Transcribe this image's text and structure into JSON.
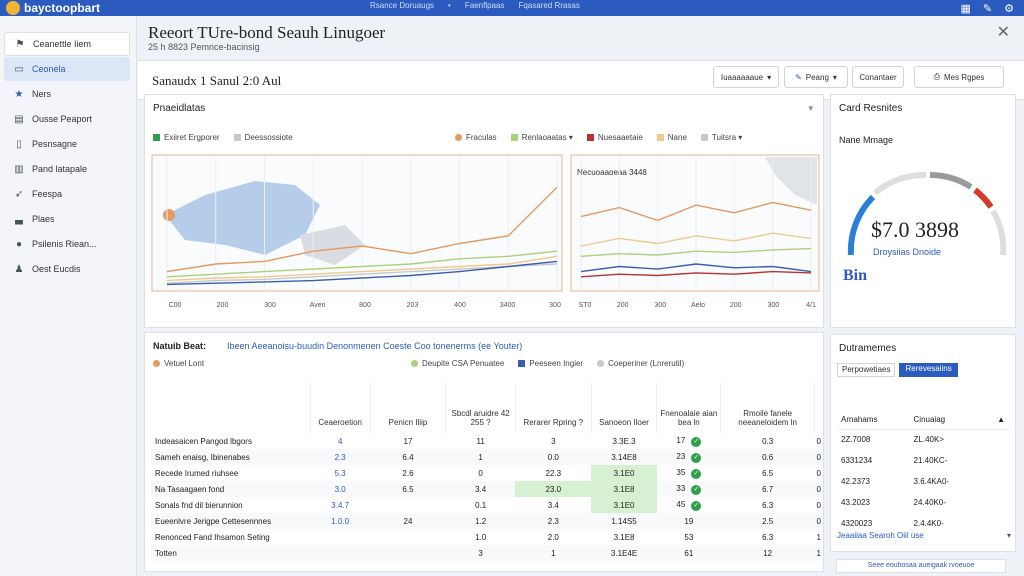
{
  "topbar": {
    "brand": "bayctoopbart",
    "nav": [
      "Rsance Doruaugs",
      "Faenflpaas",
      "Fqasared Rrasas"
    ],
    "icons": [
      "grid-icon",
      "pen-icon",
      "settings-icon"
    ]
  },
  "sidebar": {
    "items": [
      {
        "label": "Ceanettle Iiem",
        "icon": "bookmark-icon"
      },
      {
        "label": "Ceonela",
        "icon": "rectangle-icon"
      },
      {
        "label": "Ners",
        "icon": "star-icon"
      },
      {
        "label": "Ousse Peaport",
        "icon": "document-icon"
      },
      {
        "label": "Pesnsagne",
        "icon": "page-icon"
      },
      {
        "label": "Pand latapale",
        "icon": "chart-icon"
      },
      {
        "label": "Feespa",
        "icon": "pin-icon"
      },
      {
        "label": "Plaes",
        "icon": "bars-icon"
      },
      {
        "label": "Psilenis Riean...",
        "icon": "circle-icon"
      },
      {
        "label": "Oest Eucdis",
        "icon": "user-icon"
      }
    ]
  },
  "header": {
    "title": "Reeort TUre-bond Seauh Linugoer",
    "subtitle": "25 h 8823 Pemnce-bacinsig",
    "close_icon": "close-icon"
  },
  "toolbar": {
    "label": "Sanaudx 1 Sanul 2:0 Aul",
    "buttons": [
      {
        "label": "Iuaaaaaaue",
        "arrow": "▾"
      },
      {
        "label": "Peang",
        "arrow": "▾",
        "icon": "edit-icon"
      },
      {
        "label": "Conantaer",
        "arrow": ""
      },
      {
        "label": "Mes Rgpes",
        "arrow": "",
        "icon": "print-icon"
      }
    ]
  },
  "chart_panel": {
    "title": "Pnaeidlatas",
    "menu": "▾",
    "legend_left": [
      {
        "label": "Exiiret Ergporer",
        "color": "#2e9e4a"
      },
      {
        "label": "Deessossiote",
        "color": "#c8c8c8"
      }
    ],
    "legend_right": [
      {
        "label": "Fraculas",
        "color": "#e59a62"
      },
      {
        "label": "Renlaoaatas ▾",
        "color": "#a9d27c"
      },
      {
        "label": "Nuesaaetaie",
        "color": "#b83232"
      },
      {
        "label": "Nane",
        "color": "#f0c98f"
      },
      {
        "label": "Tuitsra ▾",
        "color": "#c8c8c8"
      }
    ],
    "map_ticks": [
      "C00",
      "200",
      "300",
      "Aven",
      "800",
      "203",
      "400",
      "3400",
      "300"
    ],
    "inset_label": "Necuoaaoeaa 3448",
    "inset_ticks": [
      "ST0",
      "200",
      "300",
      "Aelo",
      "200",
      "300",
      "4/1"
    ]
  },
  "chart_data": [
    {
      "type": "line",
      "x": [
        "C00",
        "200",
        "300",
        "Aven",
        "800",
        "203",
        "400",
        "3400",
        "300"
      ],
      "series": [
        {
          "name": "Fraculas",
          "color": "#e59a62",
          "values": [
            12,
            18,
            20,
            28,
            32,
            26,
            34,
            40,
            78
          ]
        },
        {
          "name": "Renlaoaatas",
          "color": "#a9d27c",
          "values": [
            8,
            10,
            12,
            14,
            16,
            18,
            22,
            24,
            28
          ]
        },
        {
          "name": "Nane",
          "color": "#f0c98f",
          "values": [
            5,
            7,
            8,
            10,
            12,
            14,
            16,
            18,
            24
          ]
        },
        {
          "name": "Tuitsra",
          "color": "#c8c8c8",
          "values": [
            3,
            5,
            6,
            8,
            10,
            12,
            14,
            16,
            18
          ]
        },
        {
          "name": "Deessossiote",
          "color": "#3a5fae",
          "values": [
            2,
            3,
            4,
            5,
            7,
            9,
            12,
            16,
            20
          ]
        }
      ],
      "ylim": [
        0,
        100
      ]
    },
    {
      "type": "line",
      "title": "Necuoaaoeaa 3448",
      "x": [
        "ST0",
        "200",
        "300",
        "Aelo",
        "200",
        "300",
        "4/1"
      ],
      "series": [
        {
          "name": "Fraculas",
          "color": "#e59a62",
          "values": [
            55,
            62,
            52,
            64,
            58,
            66,
            60
          ]
        },
        {
          "name": "Nane",
          "color": "#f0c98f",
          "values": [
            32,
            38,
            34,
            40,
            36,
            42,
            38
          ]
        },
        {
          "name": "Renlaoaatas",
          "color": "#a9d27c",
          "values": [
            24,
            26,
            25,
            28,
            27,
            29,
            30
          ]
        },
        {
          "name": "Deessossiote",
          "color": "#3a5fae",
          "values": [
            12,
            16,
            14,
            18,
            15,
            16,
            12
          ]
        },
        {
          "name": "Nuesaaetaie",
          "color": "#b83232",
          "values": [
            8,
            10,
            9,
            11,
            10,
            12,
            11
          ]
        }
      ],
      "ylim": [
        0,
        100
      ]
    }
  ],
  "table_panel": {
    "head": "Natuib Beat:",
    "link": "Ibeen Aeeanoisu-buudin Denonmenen Coeste Coo tonenerms (ee Youter)",
    "legend": [
      {
        "label": "Vetuel Lont",
        "color": "#e59a62"
      },
      {
        "label": "Deupite CSA Penuatee",
        "color": "#a9d27c"
      },
      {
        "label": "Peeseen Ingier",
        "color": "#3a5fae"
      },
      {
        "label": "Coeperiner (Lnrerutil)",
        "color": "#c8c8c8"
      }
    ],
    "columns": [
      "",
      "Ceaeroetion",
      "Penicn Iliip",
      "Sbcdl aruidre 42 255 ?",
      "Rerarer Rpring ?",
      "Sanoeon Iloer",
      "Fnenoalaie aian bea ln",
      "Rmoile fanele neeaneloidem ln"
    ],
    "rows": [
      {
        "name": "Indeasaicen Pangod lbgors",
        "c": [
          "4",
          "17",
          "11",
          "3",
          "3.3E.3",
          "17",
          "0.3",
          "0"
        ],
        "hl": false
      },
      {
        "name": "Sameh enaisg, Ibinenabes",
        "c": [
          "2.3",
          "6.4",
          "1",
          "0.0",
          "3.14E8",
          "23",
          "0.6",
          "0"
        ],
        "hl": false
      },
      {
        "name": "Recede Irumed riuhsee",
        "c": [
          "5.3",
          "2.6",
          "0",
          "22.3",
          "3.1E0",
          "35",
          "6.5",
          "0"
        ],
        "hl": true
      },
      {
        "name": "Na Tasaagaen fond",
        "c": [
          "3.0",
          "6.5",
          "3.4",
          "23.0",
          "3.1E8",
          "33",
          "6.7",
          "0"
        ],
        "hl": true
      },
      {
        "name": "Sonals fnd dil bierunnion",
        "c": [
          "3.4.7",
          "",
          "0.1",
          "3.4",
          "3.1E0",
          "45",
          "6.3",
          "0"
        ],
        "hl": true
      },
      {
        "name": "Eueenlvre Jerigpe Cettesennnes",
        "c": [
          "1.0.0",
          "24",
          "1.2",
          "2.3",
          "1.14S5",
          "19",
          "2.5",
          "0"
        ],
        "hl": false
      },
      {
        "name": "Renonced Fand Ihsamon Seting",
        "c": [
          "",
          "",
          "1.0",
          "2.0",
          "3.1E8",
          "53",
          "6.3",
          "1"
        ],
        "hl": false
      },
      {
        "name": "Totten",
        "c": [
          "",
          "",
          "3",
          "1",
          "3.1E4E",
          "61",
          "12",
          "1"
        ],
        "hl": false
      }
    ]
  },
  "gauge_panel": {
    "title": "Card Resnites",
    "label": "Nane Mmage",
    "amount": "$7.0 3898",
    "sub": "Droysiias Dnoide",
    "logo": "Bin",
    "level": 0.58,
    "colors": [
      "#2b7fd6",
      "#dedede",
      "#9a9a9a",
      "#d23a2a"
    ]
  },
  "dist_panel": {
    "title": "Dutramemes",
    "tab1": "Perpowetiaes",
    "tab2": "Rerevesaiins",
    "col1": "Arnahams",
    "col2": "Cinuaiag",
    "rows": [
      [
        "2Z.7008",
        "ZL.40K>"
      ],
      [
        "6331234",
        "21.40KC-"
      ],
      [
        "42.2373",
        "3.6.4KA0-"
      ],
      [
        "43.2023",
        "24.40K0-"
      ],
      [
        "4320023",
        "2.4.4K0-"
      ]
    ],
    "footer": "Jeaaiiaa Searoh Oiil use",
    "bottom_button": "Seee eouhosaa aueigaak rvoeuoe"
  }
}
